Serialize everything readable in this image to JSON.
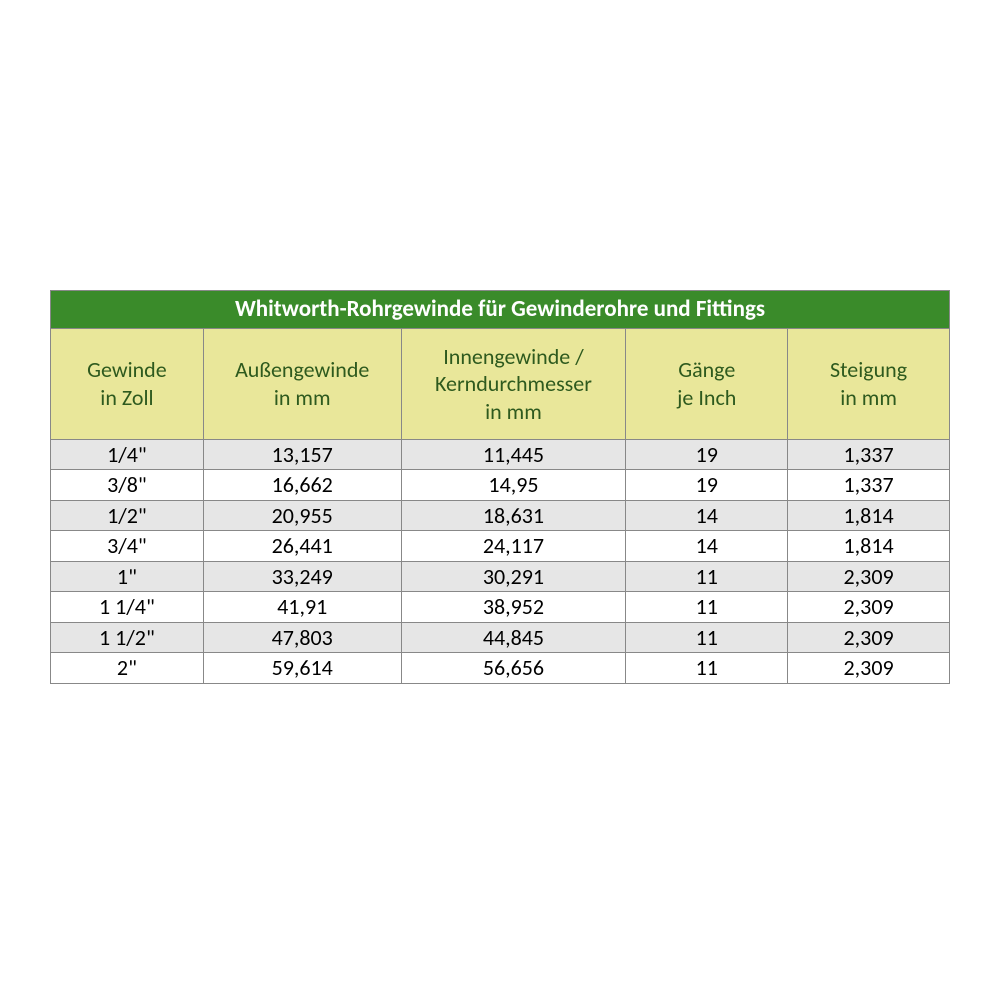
{
  "table": {
    "type": "table",
    "title": "Whitworth-Rohrgewinde für Gewinderohre und Fittings",
    "title_bg": "#3a8b2a",
    "title_color": "#ffffff",
    "header_bg": "#e9e79a",
    "header_color": "#2e5a1e",
    "row_odd_bg": "#e6e6e6",
    "row_even_bg": "#ffffff",
    "border_color": "#888888",
    "font_family": "Calibri",
    "title_fontsize": 23,
    "header_fontsize": 22,
    "cell_fontsize": 22,
    "column_widths_pct": [
      17,
      22,
      25,
      18,
      18
    ],
    "columns": [
      {
        "line1": "Gewinde",
        "line2": "in Zoll"
      },
      {
        "line1": "Außengewinde",
        "line2": "in mm"
      },
      {
        "line1": "Innengewinde /",
        "line2": "Kerndurchmesser",
        "line3": "in mm"
      },
      {
        "line1": "Gänge",
        "line2": "je Inch"
      },
      {
        "line1": "Steigung",
        "line2": "in mm"
      }
    ],
    "rows": [
      [
        "1/4\"",
        "13,157",
        "11,445",
        "19",
        "1,337"
      ],
      [
        "3/8\"",
        "16,662",
        "14,95",
        "19",
        "1,337"
      ],
      [
        "1/2\"",
        "20,955",
        "18,631",
        "14",
        "1,814"
      ],
      [
        "3/4\"",
        "26,441",
        "24,117",
        "14",
        "1,814"
      ],
      [
        "1\"",
        "33,249",
        "30,291",
        "11",
        "2,309"
      ],
      [
        "1 1/4\"",
        "41,91",
        "38,952",
        "11",
        "2,309"
      ],
      [
        "1 1/2\"",
        "47,803",
        "44,845",
        "11",
        "2,309"
      ],
      [
        "2\"",
        "59,614",
        "56,656",
        "11",
        "2,309"
      ]
    ]
  }
}
